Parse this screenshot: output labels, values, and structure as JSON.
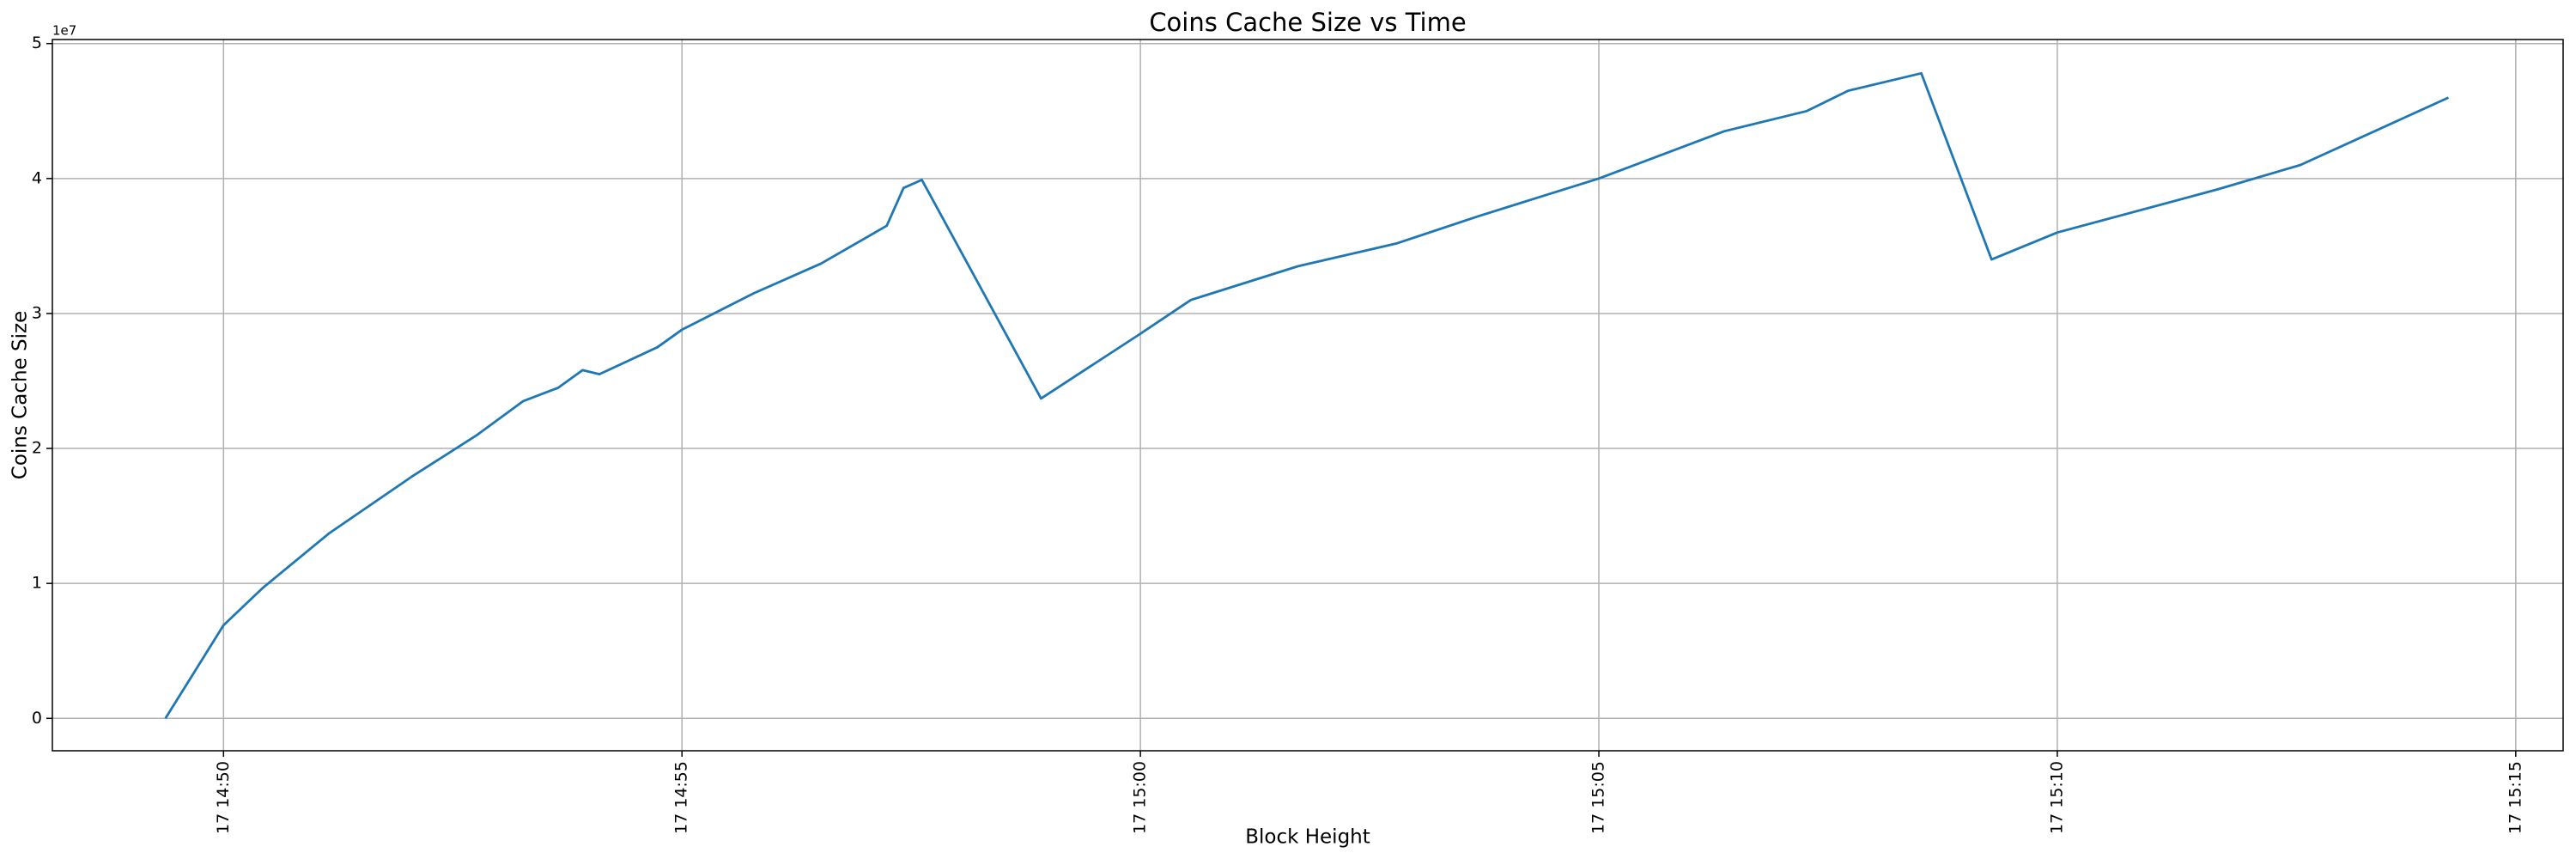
{
  "chart_data": {
    "type": "line",
    "title": "Coins Cache Size vs Time",
    "x_label": "Block Height",
    "y_label": "Coins Cache Size",
    "y_offset_label": "1e7",
    "x": [
      "17 14:49:22",
      "17 14:50:00",
      "17 14:50:26",
      "17 14:51:09",
      "17 14:52:03",
      "17 14:52:46",
      "17 14:53:16",
      "17 14:53:39",
      "17 14:53:55",
      "17 14:54:06",
      "17 14:54:44",
      "17 14:55:00",
      "17 14:55:47",
      "17 14:56:31",
      "17 14:57:14",
      "17 14:57:25",
      "17 14:57:37",
      "17 14:58:55",
      "17 15:00:00",
      "17 15:00:33",
      "17 15:01:43",
      "17 15:02:48",
      "17 15:03:41",
      "17 15:05:00",
      "17 15:06:22",
      "17 15:07:16",
      "17 15:07:43",
      "17 15:08:31",
      "17 15:09:17",
      "17 15:10:00",
      "17 15:11:45",
      "17 15:12:39",
      "17 15:14:16"
    ],
    "series": [
      {
        "name": "Coins Cache Size",
        "color": "#1f77b4",
        "values": [
          0,
          6900000,
          9700000,
          13700000,
          17900000,
          21000000,
          23500000,
          24500000,
          25800000,
          25500000,
          27500000,
          28800000,
          31500000,
          33700000,
          36500000,
          39300000,
          39900000,
          23700000,
          28500000,
          31000000,
          33500000,
          35200000,
          37200000,
          40000000,
          43500000,
          45000000,
          46500000,
          47800000,
          34000000,
          36000000,
          39200000,
          41000000,
          46000000
        ]
      }
    ],
    "xlim": [
      "17 14:48:08",
      "17 15:15:31"
    ],
    "xticks": [
      "17 14:50",
      "17 14:55",
      "17 15:00",
      "17 15:05",
      "17 15:10",
      "17 15:15"
    ],
    "ylim": [
      -2400000,
      50300000
    ],
    "yticks": [
      {
        "value": 0,
        "label": "0"
      },
      {
        "value": 10000000,
        "label": "1"
      },
      {
        "value": 20000000,
        "label": "2"
      },
      {
        "value": 30000000,
        "label": "3"
      },
      {
        "value": 40000000,
        "label": "4"
      },
      {
        "value": 50000000,
        "label": "5"
      }
    ],
    "grid": true
  }
}
